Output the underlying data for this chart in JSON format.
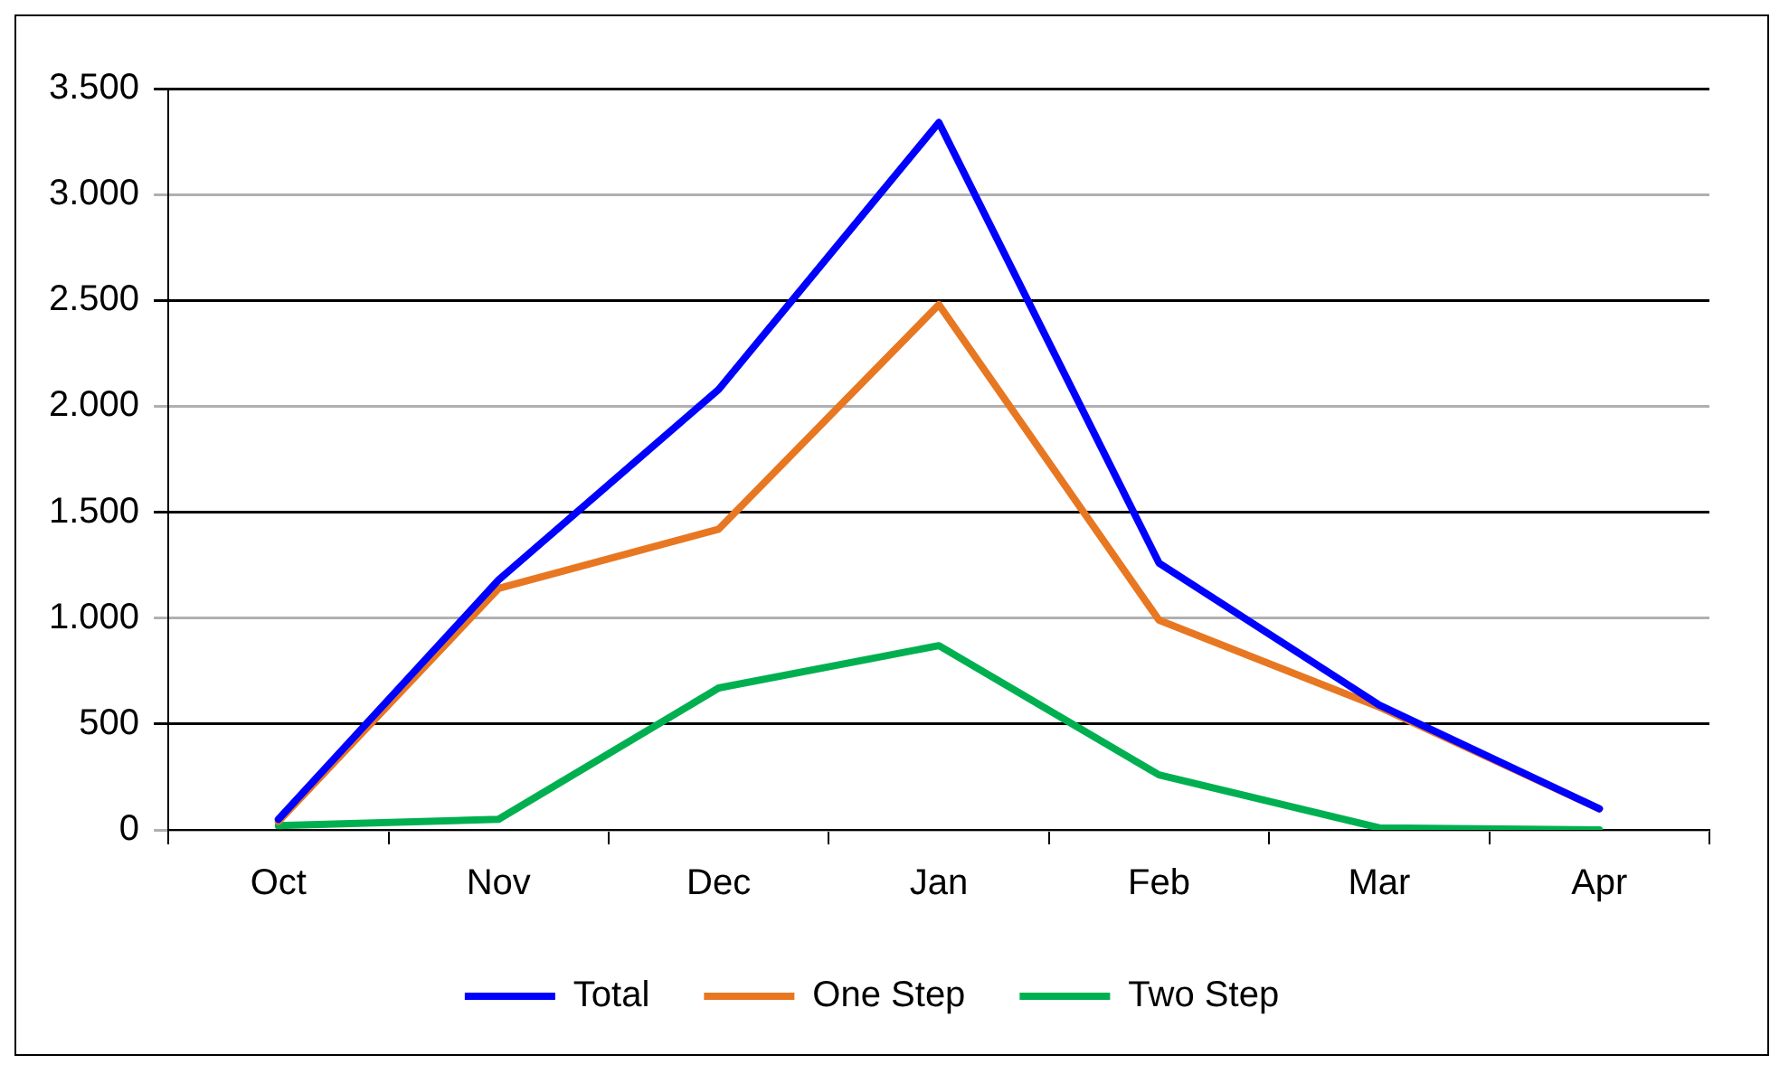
{
  "chart_data": {
    "type": "line",
    "categories": [
      "Oct",
      "Nov",
      "Dec",
      "Jan",
      "Feb",
      "Mar",
      "Apr"
    ],
    "series": [
      {
        "name": "Total",
        "color": "#0000ff",
        "values": [
          50,
          1180,
          2080,
          3340,
          1260,
          590,
          100
        ]
      },
      {
        "name": "One Step",
        "color": "#e87722",
        "values": [
          40,
          1140,
          1420,
          2480,
          990,
          580,
          100
        ]
      },
      {
        "name": "Two Step",
        "color": "#00b050",
        "values": [
          20,
          50,
          670,
          870,
          260,
          10,
          0
        ]
      }
    ],
    "ylim": [
      0,
      3500
    ],
    "yticks": [
      {
        "value": 0,
        "label": "0"
      },
      {
        "value": 500,
        "label": "500"
      },
      {
        "value": 1000,
        "label": "1.000"
      },
      {
        "value": 1500,
        "label": "1.500"
      },
      {
        "value": 2000,
        "label": "2.000"
      },
      {
        "value": 2500,
        "label": "2.500"
      },
      {
        "value": 3000,
        "label": "3.000"
      },
      {
        "value": 3500,
        "label": "3.500"
      }
    ],
    "grid": "y",
    "legend": "bottom",
    "marker": "none",
    "line_style": "solid"
  }
}
